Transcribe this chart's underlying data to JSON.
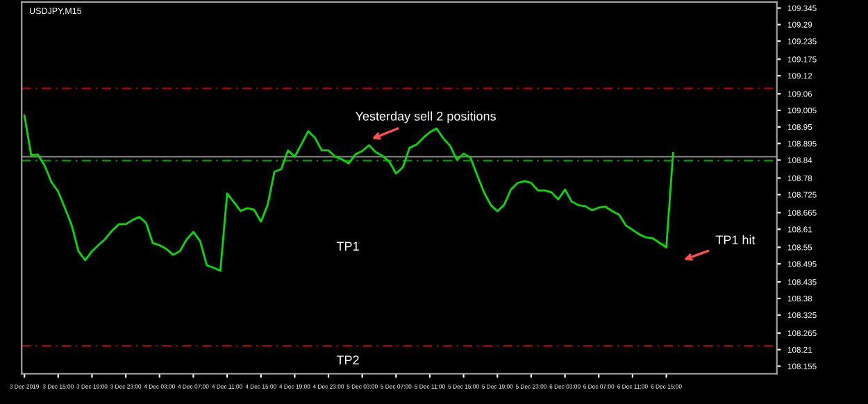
{
  "chart_data": {
    "type": "line",
    "title": "USDJPY,M15",
    "categories": [
      "3 Dec 2019",
      null,
      null,
      null,
      null,
      "3 Dec 15:00",
      null,
      null,
      null,
      null,
      "3 Dec 19:00",
      null,
      null,
      null,
      null,
      "3 Dec 23:00",
      null,
      null,
      null,
      null,
      "4 Dec 03:00",
      null,
      null,
      null,
      null,
      "4 Dec 07:00",
      null,
      null,
      null,
      null,
      "4 Dec 11:00",
      null,
      null,
      null,
      null,
      "4 Dec 15:00",
      null,
      null,
      null,
      null,
      "4 Dec 19:00",
      null,
      null,
      null,
      null,
      "4 Dec 23:00",
      null,
      null,
      null,
      null,
      "5 Dec 03:00",
      null,
      null,
      null,
      null,
      "5 Dec 07:00",
      null,
      null,
      null,
      null,
      "5 Dec 11:00",
      null,
      null,
      null,
      null,
      "5 Dec 15:00",
      null,
      null,
      null,
      null,
      "5 Dec 19:00",
      null,
      null,
      null,
      null,
      "5 Dec 23:00",
      null,
      null,
      null,
      null,
      "6 Dec 03:00",
      null,
      null,
      null,
      null,
      "6 Dec 07:00",
      null,
      null,
      null,
      null,
      "6 Dec 11:00",
      null,
      null,
      null,
      null,
      "6 Dec 15:00",
      null
    ],
    "series": [
      {
        "color": "#00e000",
        "values": [
          108.988,
          108.856,
          108.858,
          108.821,
          108.767,
          108.735,
          108.68,
          108.623,
          108.537,
          108.507,
          108.537,
          108.558,
          108.579,
          108.606,
          108.627,
          108.627,
          108.641,
          108.651,
          108.631,
          108.564,
          108.557,
          108.545,
          108.525,
          108.537,
          108.576,
          108.601,
          108.571,
          108.49,
          108.482,
          108.472,
          108.729,
          108.7,
          108.671,
          108.68,
          108.675,
          108.635,
          108.691,
          108.801,
          108.81,
          108.872,
          108.851,
          108.893,
          108.936,
          108.914,
          108.872,
          108.872,
          108.851,
          108.842,
          108.829,
          108.859,
          108.87,
          108.889,
          108.866,
          108.854,
          108.835,
          108.795,
          108.816,
          108.881,
          108.891,
          108.913,
          108.933,
          108.945,
          108.912,
          108.887,
          108.841,
          108.861,
          108.849,
          108.79,
          108.734,
          108.691,
          108.67,
          108.691,
          108.742,
          108.764,
          108.77,
          108.764,
          108.739,
          108.739,
          108.733,
          108.709,
          108.742,
          108.702,
          108.69,
          108.687,
          108.673,
          108.682,
          108.685,
          108.67,
          108.659,
          108.623,
          108.608,
          108.593,
          108.583,
          108.58,
          108.565,
          108.55,
          108.863
        ]
      }
    ],
    "ylim": [
      108.13,
      109.365
    ],
    "yticks": [
      108.155,
      108.21,
      108.265,
      108.325,
      108.38,
      108.435,
      108.495,
      108.55,
      108.61,
      108.665,
      108.725,
      108.78,
      108.84,
      108.895,
      108.95,
      109.005,
      109.06,
      109.12,
      109.175,
      109.235,
      109.29,
      109.345
    ],
    "ref_lines": [
      {
        "axis": "y",
        "value": 109.078,
        "color": "#b00000",
        "line_style": "dashed"
      },
      {
        "axis": "y",
        "value": 108.223,
        "color": "#b00000",
        "line_style": "dashed"
      },
      {
        "axis": "y",
        "value": 108.838,
        "color": "#00a000",
        "line_style": "dashed"
      },
      {
        "axis": "y",
        "value": 108.851,
        "color": "#808080",
        "line_style": "solid"
      }
    ],
    "annotations": [
      "Yesterday sell 2 positions",
      "TP1 hit",
      "TP1",
      "TP2"
    ],
    "grid": false,
    "legend": false,
    "marker": "none",
    "line_style": "solid"
  }
}
